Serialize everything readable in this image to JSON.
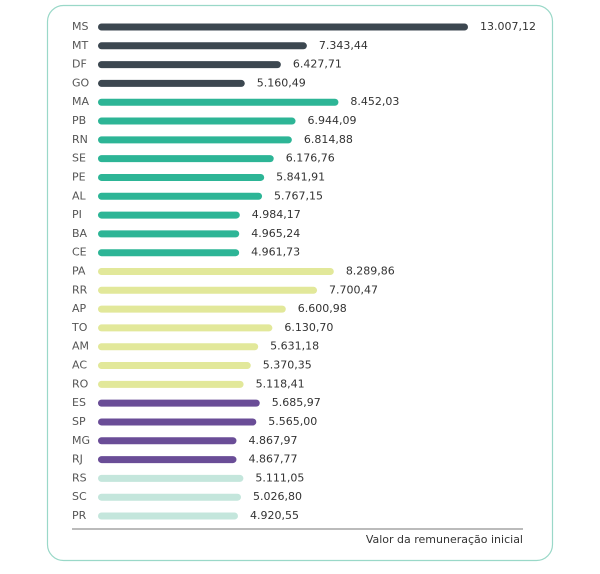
{
  "chart_data": {
    "type": "hbar",
    "x_label": "Valor da remuneração inicial",
    "categories": [
      "MS",
      "MT",
      "DF",
      "GO",
      "MA",
      "PB",
      "RN",
      "SE",
      "PE",
      "AL",
      "PI",
      "BA",
      "CE",
      "PA",
      "RR",
      "AP",
      "TO",
      "AM",
      "AC",
      "RO",
      "ES",
      "SP",
      "MG",
      "RJ",
      "RS",
      "SC",
      "PR"
    ],
    "values": [
      13007.12,
      7343.44,
      6427.71,
      5160.49,
      8452.03,
      6944.09,
      6814.88,
      6176.76,
      5841.91,
      5767.15,
      4984.17,
      4965.24,
      4961.73,
      8289.86,
      7700.47,
      6600.98,
      6130.7,
      5631.18,
      5370.35,
      5118.41,
      5685.97,
      5565.0,
      4867.97,
      4867.77,
      5111.05,
      5026.8,
      4920.55
    ],
    "value_labels": [
      "13.007,12",
      "7.343,44",
      "6.427,71",
      "5.160,49",
      "8.452,03",
      "6.944,09",
      "6.814,88",
      "6.176,76",
      "5.841,91",
      "5.767,15",
      "4.984,17",
      "4.965,24",
      "4.961,73",
      "8.289,86",
      "7.700,47",
      "6.600,98",
      "6.130,70",
      "5.631,18",
      "5.370,35",
      "5.118,41",
      "5.685,97",
      "5.565,00",
      "4.867,97",
      "4.867,77",
      "5.111,05",
      "5.026,80",
      "4.920,55"
    ],
    "colors": [
      "#3c4750",
      "#3c4750",
      "#3c4750",
      "#3c4750",
      "#2db596",
      "#2db596",
      "#2db596",
      "#2db596",
      "#2db596",
      "#2db596",
      "#2db596",
      "#2db596",
      "#2db596",
      "#e2e89a",
      "#e2e89a",
      "#e2e89a",
      "#e2e89a",
      "#e2e89a",
      "#e2e89a",
      "#e2e89a",
      "#6a4d97",
      "#6a4d97",
      "#6a4d97",
      "#6a4d97",
      "#c4e6dc",
      "#c4e6dc",
      "#c4e6dc"
    ]
  }
}
